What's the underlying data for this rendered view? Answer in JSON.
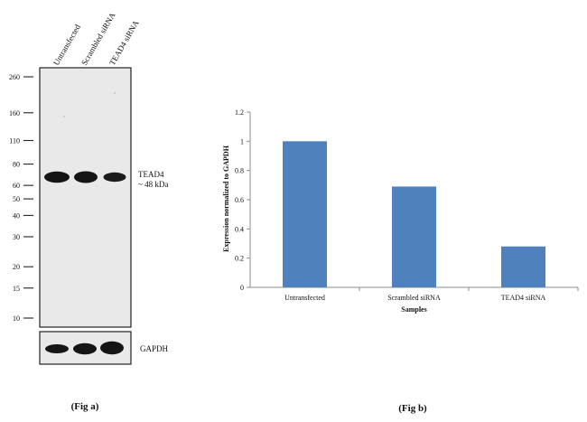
{
  "fig_a": {
    "caption": "(Fig a)",
    "lanes": [
      "Untransfected",
      "Scrambled siRNA",
      "TEAD4 siRNA"
    ],
    "markers": [
      "260",
      "160",
      "110",
      "80",
      "60",
      "50",
      "40",
      "30",
      "20",
      "15",
      "10"
    ],
    "marker_values": [
      260,
      160,
      110,
      80,
      60,
      50,
      40,
      30,
      20,
      15,
      10
    ],
    "target_label": "TEAD4",
    "target_size": "~ 48 kDa",
    "target_kda": 48,
    "control_label": "GAPDH",
    "colors": {
      "blot_bg": "#e9e9ea",
      "band": "#151515",
      "border": "#222222"
    }
  },
  "fig_b": {
    "caption": "(Fig b)",
    "chart_data": {
      "type": "bar",
      "categories": [
        "Untransfected",
        "Scrambled siRNA",
        "TEAD4 siRNA"
      ],
      "values": [
        1.0,
        0.69,
        0.28
      ],
      "title": "",
      "xlabel": "Samples",
      "ylabel": "Expression normalized to GAPDH",
      "ylim": [
        0,
        1.2
      ],
      "yticks": [
        "0",
        "0.2",
        "0.4",
        "0.6",
        "0.8",
        "1",
        "1.2"
      ],
      "grid": false,
      "legend": "none",
      "bar_color": "#4f81bd"
    }
  }
}
